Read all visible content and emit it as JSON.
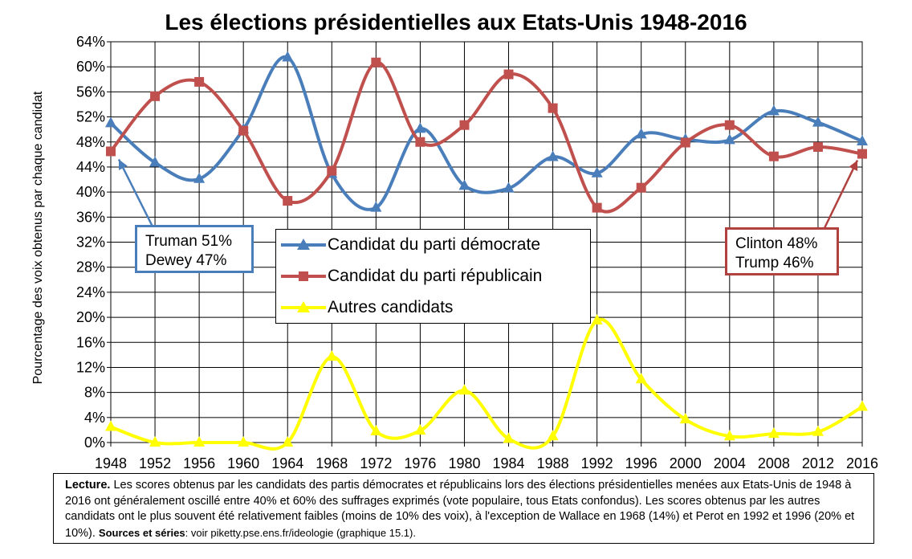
{
  "chart_data": {
    "type": "line",
    "title": "Les élections présidentielles aux Etats-Unis 1948-2016",
    "ylabel": "Pourcentage des voix obtenus par chaque candidat",
    "xlabel": "",
    "x": [
      1948,
      1952,
      1956,
      1960,
      1964,
      1968,
      1972,
      1976,
      1980,
      1984,
      1988,
      1992,
      1996,
      2000,
      2004,
      2008,
      2012,
      2016
    ],
    "ylim": [
      0,
      64
    ],
    "yticks": [
      "0%",
      "4%",
      "8%",
      "12%",
      "16%",
      "20%",
      "24%",
      "28%",
      "32%",
      "36%",
      "40%",
      "44%",
      "48%",
      "52%",
      "56%",
      "60%",
      "64%"
    ],
    "grid": true,
    "legend_position": "center",
    "series": [
      {
        "name": "Candidat du parti démocrate",
        "color": "#4a7ebb",
        "marker": "triangle",
        "values": [
          51,
          44.7,
          42.1,
          50,
          61.5,
          42.9,
          37.5,
          50.1,
          41,
          40.6,
          45.6,
          43,
          49.2,
          48.4,
          48.3,
          52.9,
          51.1,
          48.1
        ]
      },
      {
        "name": "Candidat du parti républicain",
        "color": "#c0504d",
        "marker": "square",
        "values": [
          46.5,
          55.3,
          57.6,
          49.8,
          38.6,
          43.4,
          60.7,
          48,
          50.7,
          58.8,
          53.4,
          37.5,
          40.7,
          47.9,
          50.7,
          45.7,
          47.2,
          46.1
        ]
      },
      {
        "name": "Autres candidats",
        "color": "#ffff00",
        "marker": "triangle",
        "values": [
          2.5,
          0,
          0,
          0,
          0,
          13.7,
          1.8,
          1.9,
          8.3,
          0.6,
          1,
          19.5,
          10.1,
          3.7,
          1,
          1.4,
          1.7,
          5.7
        ]
      }
    ]
  },
  "annotations": {
    "left": {
      "line1": "Truman 51%",
      "line2": "Dewey 47%",
      "color": "#4a7ebb"
    },
    "right": {
      "line1": "Clinton 48%",
      "line2": "Trump 46%",
      "color": "#b0413e"
    }
  },
  "note": {
    "lead": "Lecture.",
    "body": " Les scores obtenus par les candidats des partis démocrates et républicains lors des élections présidentielles menées aux Etats-Unis de 1948 à 2016 ont généralement oscillé entre 40% et 60% des suffrages exprimés (vote populaire, tous Etats confondus). Les scores obtenus par les autres candidats ont le plus souvent été relativement faibles (moins de 10% des voix), à l'exception de Wallace en 1968 (14%) et Perot en 1992 et 1996 (20% et 10%). ",
    "source_label": "Sources et séries",
    "source_text": ": voir piketty.pse.ens.fr/ideologie (graphique 15.1)."
  }
}
